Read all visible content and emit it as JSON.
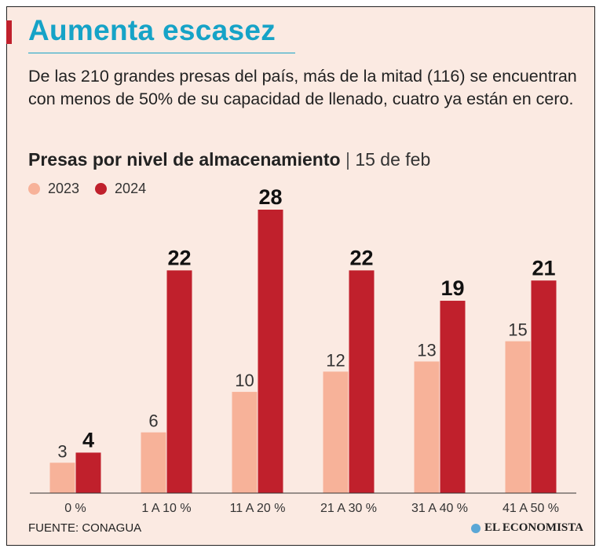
{
  "header": {
    "title": "Aumenta escasez",
    "subtitle": "De las 210 grandes presas del país, más de la mitad (116) se encuentran con menos de 50% de su capacidad de llenado, cuatro ya están en cero."
  },
  "colors": {
    "accent": "#16a3c7",
    "bar_2023": "#f7b299",
    "bar_2024": "#c0202c"
  },
  "chart_data": {
    "type": "bar",
    "title": "Presas por nivel de almacenamiento",
    "title_separator": "|",
    "subtitle_date": "15 de feb",
    "categories": [
      "0 %",
      "1 A 10 %",
      "11 A 20 %",
      "21 A 30 %",
      "31 A 40 %",
      "41 A 50 %"
    ],
    "series": [
      {
        "name": "2023",
        "values": [
          3,
          6,
          10,
          12,
          13,
          15
        ]
      },
      {
        "name": "2024",
        "values": [
          4,
          22,
          28,
          22,
          19,
          21
        ]
      }
    ],
    "xlabel": "",
    "ylabel": "",
    "ylim": [
      0,
      28
    ],
    "legend_position": "top-left",
    "grid": false
  },
  "footer": {
    "source": "FUENTE: CONAGUA",
    "brand": "EL ECONOMISTA"
  }
}
